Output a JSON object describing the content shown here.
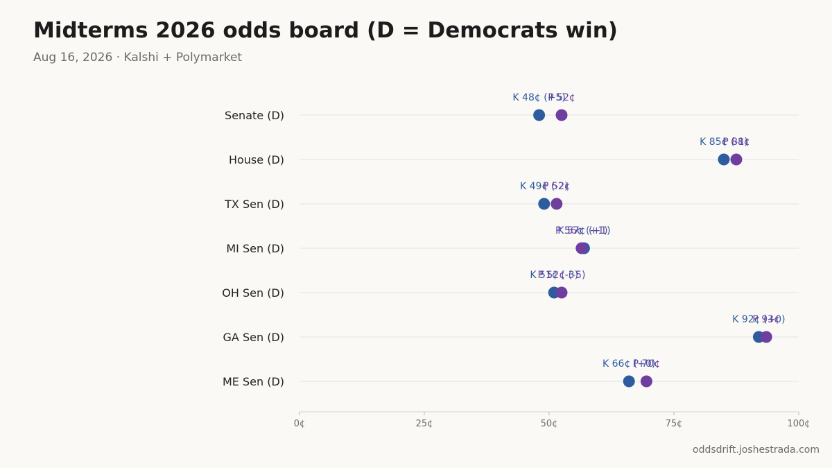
{
  "title": "Midterms 2026 odds board (D = Democrats win)",
  "subtitle": "Aug 16, 2026 · Kalshi + Polymarket",
  "footer": "oddsdrift.joshestrada.com",
  "chart_data": {
    "type": "scatter",
    "categories": [
      "Senate (D)",
      "House (D)",
      "TX Sen (D)",
      "MI Sen (D)",
      "OH Sen (D)",
      "GA Sen (D)",
      "ME Sen (D)"
    ],
    "series": [
      {
        "name": "K",
        "color": "#2e5c9e",
        "values": [
          48,
          85,
          49,
          57,
          51,
          92,
          66
        ],
        "labels": [
          "K 48¢ (+5)",
          "K 85¢ (-1)",
          "K 49¢ (-2)",
          "K 57¢ (+1)",
          "K 51¢ (-3)",
          "K 92¢ (+0)",
          "K 66¢ (+0)"
        ]
      },
      {
        "name": "P",
        "color": "#6f3fa0",
        "values": [
          52.5,
          87.5,
          51.5,
          56.5,
          52.5,
          93.5,
          69.5
        ],
        "labels": [
          "P 52¢",
          "P 88¢",
          "P 52¢",
          "P 56¢ (+1)",
          "P 52¢ (-5)",
          "P 93¢",
          "P 70¢"
        ]
      }
    ],
    "xlim": [
      0,
      100
    ],
    "xticks": [
      0,
      25,
      50,
      75,
      100
    ],
    "xtick_labels": [
      "0¢",
      "25¢",
      "50¢",
      "75¢",
      "100¢"
    ],
    "grid": true,
    "legend": "none"
  }
}
